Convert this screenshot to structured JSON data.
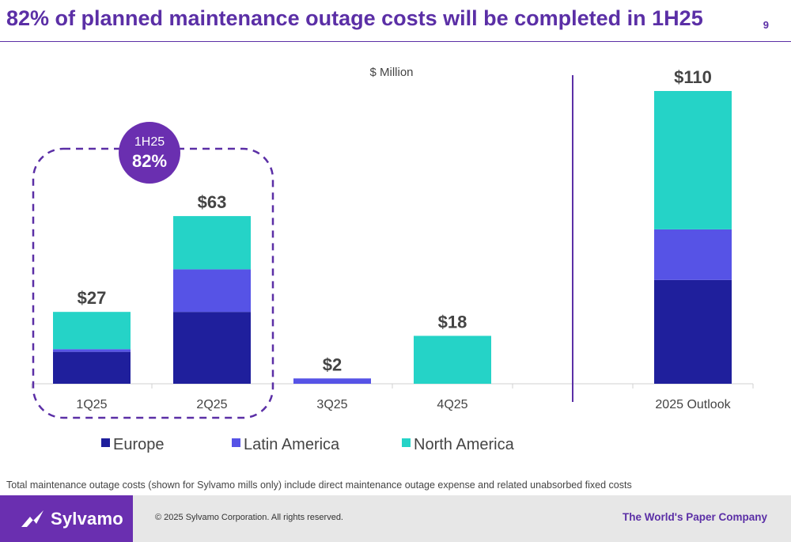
{
  "header": {
    "title": "82% of planned maintenance outage costs will be completed in 1H25",
    "page_number": "9"
  },
  "chart_data": {
    "type": "bar",
    "stacked": true,
    "unit_label": "$ Million",
    "categories": [
      "1Q25",
      "2Q25",
      "3Q25",
      "4Q25",
      "",
      "2025 Outlook"
    ],
    "totals": [
      "$27",
      "$63",
      "$2",
      "$18",
      "",
      "$110"
    ],
    "series": [
      {
        "name": "Europe",
        "color": "#1f1f9c",
        "values": [
          12,
          27,
          0,
          0,
          0,
          39
        ]
      },
      {
        "name": "Latin America",
        "color": "#5653e6",
        "values": [
          1,
          16,
          2,
          0,
          0,
          19
        ]
      },
      {
        "name": "North America",
        "color": "#25d3c7",
        "values": [
          14,
          20,
          0,
          18,
          0,
          52
        ]
      }
    ],
    "ylim": [
      0,
      110
    ],
    "legend_position": "bottom-left",
    "callout": {
      "label": "1H25",
      "value": "82%",
      "color": "#6a2fb0"
    }
  },
  "footnote": "Total maintenance outage costs (shown for Sylvamo mills only) include direct maintenance outage expense and related unabsorbed fixed costs",
  "footer": {
    "logo_icon": "bird-logo-icon",
    "logo_text": "Sylvamo",
    "copyright": "© 2025 Sylvamo Corporation. All rights reserved.",
    "tagline": "The World's Paper Company",
    "brand_color": "#6a2fb0"
  }
}
